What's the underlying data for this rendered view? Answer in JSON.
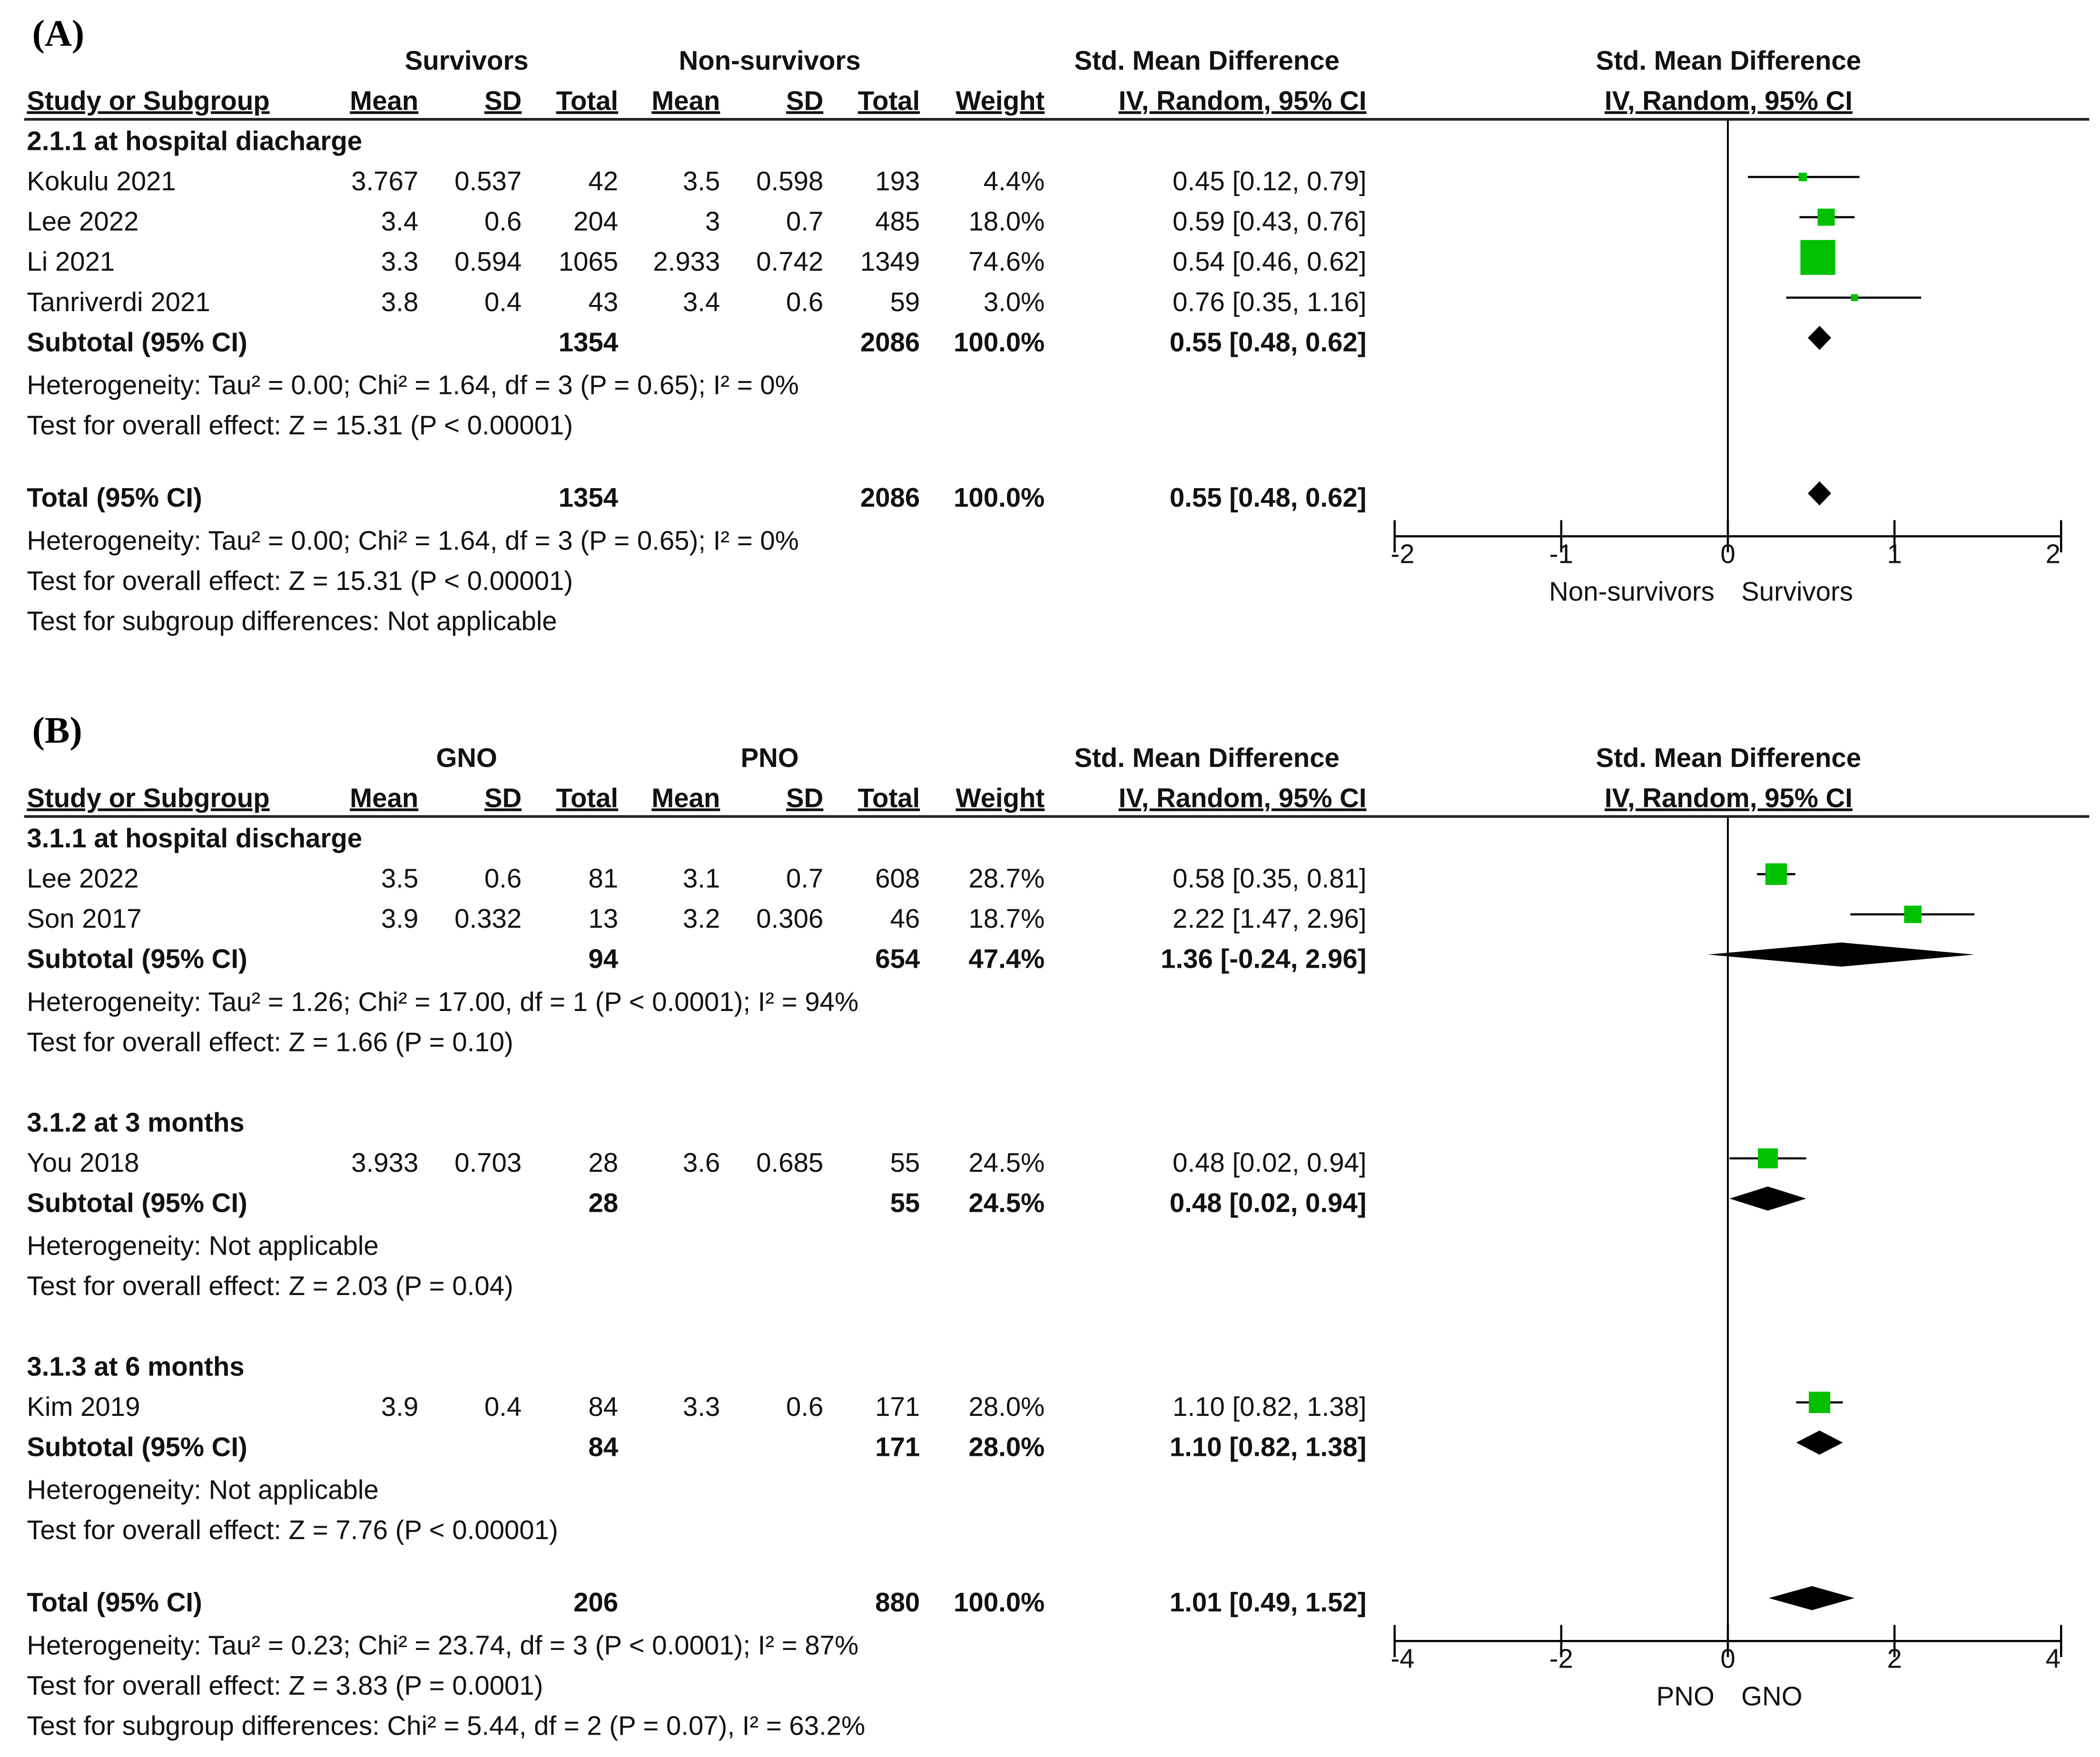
{
  "chart_data": [
    {
      "type": "forest",
      "panel_label": "(A)",
      "group_labels": [
        "Survivors",
        "Non-survivors"
      ],
      "effect_header": [
        "Std. Mean Difference",
        "IV, Random, 95% CI"
      ],
      "plot_header": [
        "Std. Mean Difference",
        "IV, Random, 95% CI"
      ],
      "columns": [
        "Study or Subgroup",
        "Mean",
        "SD",
        "Total",
        "Mean",
        "SD",
        "Total",
        "Weight"
      ],
      "subgroups": [
        {
          "title": "2.1.1 at hospital diacharge",
          "studies": [
            {
              "study": "Kokulu 2021",
              "mean1": "3.767",
              "sd1": "0.537",
              "n1": "42",
              "mean2": "3.5",
              "sd2": "0.598",
              "n2": "193",
              "weight": "4.4%",
              "ci_text": "0.45 [0.12, 0.79]",
              "est": 0.45,
              "lo": 0.12,
              "hi": 0.79,
              "w": 4.4
            },
            {
              "study": "Lee 2022",
              "mean1": "3.4",
              "sd1": "0.6",
              "n1": "204",
              "mean2": "3",
              "sd2": "0.7",
              "n2": "485",
              "weight": "18.0%",
              "ci_text": "0.59 [0.43, 0.76]",
              "est": 0.59,
              "lo": 0.43,
              "hi": 0.76,
              "w": 18.0
            },
            {
              "study": "Li 2021",
              "mean1": "3.3",
              "sd1": "0.594",
              "n1": "1065",
              "mean2": "2.933",
              "sd2": "0.742",
              "n2": "1349",
              "weight": "74.6%",
              "ci_text": "0.54 [0.46, 0.62]",
              "est": 0.54,
              "lo": 0.46,
              "hi": 0.62,
              "w": 74.6
            },
            {
              "study": "Tanriverdi 2021",
              "mean1": "3.8",
              "sd1": "0.4",
              "n1": "43",
              "mean2": "3.4",
              "sd2": "0.6",
              "n2": "59",
              "weight": "3.0%",
              "ci_text": "0.76 [0.35, 1.16]",
              "est": 0.76,
              "lo": 0.35,
              "hi": 1.16,
              "w": 3.0
            }
          ],
          "subtotal": {
            "label": "Subtotal (95% CI)",
            "n1": "1354",
            "n2": "2086",
            "weight": "100.0%",
            "ci_text": "0.55 [0.48, 0.62]",
            "est": 0.55,
            "lo": 0.48,
            "hi": 0.62
          },
          "notes": [
            "Heterogeneity: Tau² = 0.00; Chi² = 1.64, df = 3 (P = 0.65); I² = 0%",
            "Test for overall effect: Z = 15.31 (P < 0.00001)"
          ]
        }
      ],
      "total": {
        "label": "Total (95% CI)",
        "n1": "1354",
        "n2": "2086",
        "weight": "100.0%",
        "ci_text": "0.55 [0.48, 0.62]",
        "est": 0.55,
        "lo": 0.48,
        "hi": 0.62
      },
      "total_notes": [
        "Heterogeneity: Tau² = 0.00; Chi² = 1.64, df = 3 (P = 0.65); I² = 0%",
        "Test for overall effect: Z = 15.31 (P < 0.00001)",
        "Test for subgroup differences: Not applicable"
      ],
      "axis": {
        "range": [
          -2,
          2
        ],
        "ticks": [
          -2,
          -1,
          0,
          1,
          2
        ],
        "tick_labels": [
          "-2",
          "-1",
          "0",
          "1",
          "2"
        ],
        "left_label": "Non-survivors",
        "right_label": "Survivors"
      }
    },
    {
      "type": "forest",
      "panel_label": "(B)",
      "group_labels": [
        "GNO",
        "PNO"
      ],
      "effect_header": [
        "Std. Mean Difference",
        "IV, Random, 95% CI"
      ],
      "plot_header": [
        "Std. Mean Difference",
        "IV, Random, 95% CI"
      ],
      "columns": [
        "Study or Subgroup",
        "Mean",
        "SD",
        "Total",
        "Mean",
        "SD",
        "Total",
        "Weight"
      ],
      "subgroups": [
        {
          "title": "3.1.1 at hospital discharge",
          "studies": [
            {
              "study": "Lee 2022",
              "mean1": "3.5",
              "sd1": "0.6",
              "n1": "81",
              "mean2": "3.1",
              "sd2": "0.7",
              "n2": "608",
              "weight": "28.7%",
              "ci_text": "0.58 [0.35, 0.81]",
              "est": 0.58,
              "lo": 0.35,
              "hi": 0.81,
              "w": 28.7
            },
            {
              "study": "Son 2017",
              "mean1": "3.9",
              "sd1": "0.332",
              "n1": "13",
              "mean2": "3.2",
              "sd2": "0.306",
              "n2": "46",
              "weight": "18.7%",
              "ci_text": "2.22 [1.47, 2.96]",
              "est": 2.22,
              "lo": 1.47,
              "hi": 2.96,
              "w": 18.7
            }
          ],
          "subtotal": {
            "label": "Subtotal (95% CI)",
            "n1": "94",
            "n2": "654",
            "weight": "47.4%",
            "ci_text": "1.36 [-0.24, 2.96]",
            "est": 1.36,
            "lo": -0.24,
            "hi": 2.96
          },
          "notes": [
            "Heterogeneity: Tau² = 1.26; Chi² = 17.00, df = 1 (P < 0.0001); I² = 94%",
            "Test for overall effect: Z = 1.66 (P = 0.10)"
          ]
        },
        {
          "title": "3.1.2 at 3 months",
          "studies": [
            {
              "study": "You 2018",
              "mean1": "3.933",
              "sd1": "0.703",
              "n1": "28",
              "mean2": "3.6",
              "sd2": "0.685",
              "n2": "55",
              "weight": "24.5%",
              "ci_text": "0.48 [0.02, 0.94]",
              "est": 0.48,
              "lo": 0.02,
              "hi": 0.94,
              "w": 24.5
            }
          ],
          "subtotal": {
            "label": "Subtotal (95% CI)",
            "n1": "28",
            "n2": "55",
            "weight": "24.5%",
            "ci_text": "0.48 [0.02, 0.94]",
            "est": 0.48,
            "lo": 0.02,
            "hi": 0.94
          },
          "notes": [
            "Heterogeneity: Not applicable",
            "Test for overall effect: Z = 2.03 (P = 0.04)"
          ]
        },
        {
          "title": "3.1.3 at 6 months",
          "studies": [
            {
              "study": "Kim 2019",
              "mean1": "3.9",
              "sd1": "0.4",
              "n1": "84",
              "mean2": "3.3",
              "sd2": "0.6",
              "n2": "171",
              "weight": "28.0%",
              "ci_text": "1.10 [0.82, 1.38]",
              "est": 1.1,
              "lo": 0.82,
              "hi": 1.38,
              "w": 28.0
            }
          ],
          "subtotal": {
            "label": "Subtotal (95% CI)",
            "n1": "84",
            "n2": "171",
            "weight": "28.0%",
            "ci_text": "1.10 [0.82, 1.38]",
            "est": 1.1,
            "lo": 0.82,
            "hi": 1.38
          },
          "notes": [
            "Heterogeneity: Not applicable",
            "Test for overall effect: Z = 7.76 (P < 0.00001)"
          ]
        }
      ],
      "total": {
        "label": "Total (95% CI)",
        "n1": "206",
        "n2": "880",
        "weight": "100.0%",
        "ci_text": "1.01 [0.49, 1.52]",
        "est": 1.01,
        "lo": 0.49,
        "hi": 1.52
      },
      "total_notes": [
        "Heterogeneity: Tau² = 0.23; Chi² = 23.74, df = 3 (P < 0.0001); I² = 87%",
        "Test for overall effect: Z = 3.83 (P = 0.0001)",
        "Test for subgroup differences: Chi² = 5.44, df = 2 (P = 0.07), I² = 63.2%"
      ],
      "axis": {
        "range": [
          -4,
          4
        ],
        "ticks": [
          -4,
          -2,
          0,
          2,
          4
        ],
        "tick_labels": [
          "-4",
          "-2",
          "0",
          "2",
          "4"
        ],
        "left_label": "PNO",
        "right_label": "GNO"
      }
    }
  ],
  "colors": {
    "square": "#00c000",
    "diamond": "#000000",
    "line": "#000000"
  }
}
